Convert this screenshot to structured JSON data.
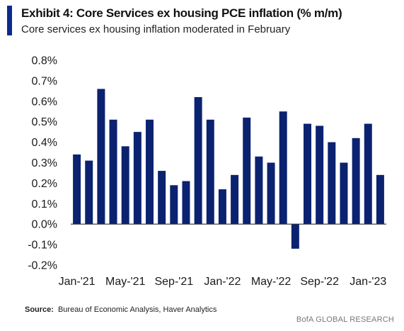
{
  "header": {
    "title": "Exhibit 4: Core Services ex housing PCE inflation (% m/m)",
    "subtitle": "Core services ex housing inflation moderated in February"
  },
  "footer": {
    "source_label": "Source:",
    "source_text": "Bureau of Economic Analysis, Haver Analytics",
    "brand": "BofA GLOBAL RESEARCH"
  },
  "colors": {
    "bar": "#0b2270",
    "accent": "#0b2a8c",
    "axis": "#333333"
  },
  "chart_data": {
    "type": "bar",
    "title": "Exhibit 4: Core Services ex housing PCE inflation (% m/m)",
    "xlabel": "",
    "ylabel": "",
    "ylim": [
      -0.002,
      0.008
    ],
    "y_tick_values": [
      0.008,
      0.007,
      0.006,
      0.005,
      0.004,
      0.003,
      0.002,
      0.001,
      0.0,
      -0.001,
      -0.002
    ],
    "y_tick_labels": [
      "0.8%",
      "0.7%",
      "0.6%",
      "0.5%",
      "0.4%",
      "0.3%",
      "0.2%",
      "0.1%",
      "0.0%",
      "-0.1%",
      "-0.2%"
    ],
    "categories": [
      "Jan-'21",
      "Feb-'21",
      "Mar-'21",
      "Apr-'21",
      "May-'21",
      "Jun-'21",
      "Jul-'21",
      "Aug-'21",
      "Sep-'21",
      "Oct-'21",
      "Nov-'21",
      "Dec-'21",
      "Jan-'22",
      "Feb-'22",
      "Mar-'22",
      "Apr-'22",
      "May-'22",
      "Jun-'22",
      "Jul-'22",
      "Aug-'22",
      "Sep-'22",
      "Oct-'22",
      "Nov-'22",
      "Dec-'22",
      "Jan-'23",
      "Feb-'23"
    ],
    "x_tick_labels": [
      "Jan-'21",
      "May-'21",
      "Sep-'21",
      "Jan-'22",
      "May-'22",
      "Sep-'22",
      "Jan-'23"
    ],
    "values": [
      0.0034,
      0.0031,
      0.0066,
      0.0051,
      0.0038,
      0.0045,
      0.0051,
      0.0026,
      0.0019,
      0.0021,
      0.0062,
      0.0051,
      0.0017,
      0.0024,
      0.0052,
      0.0033,
      0.003,
      0.0055,
      -0.0012,
      0.0049,
      0.0048,
      0.004,
      0.003,
      0.0042,
      0.0049,
      0.0024
    ],
    "grid": false,
    "legend": "none"
  }
}
